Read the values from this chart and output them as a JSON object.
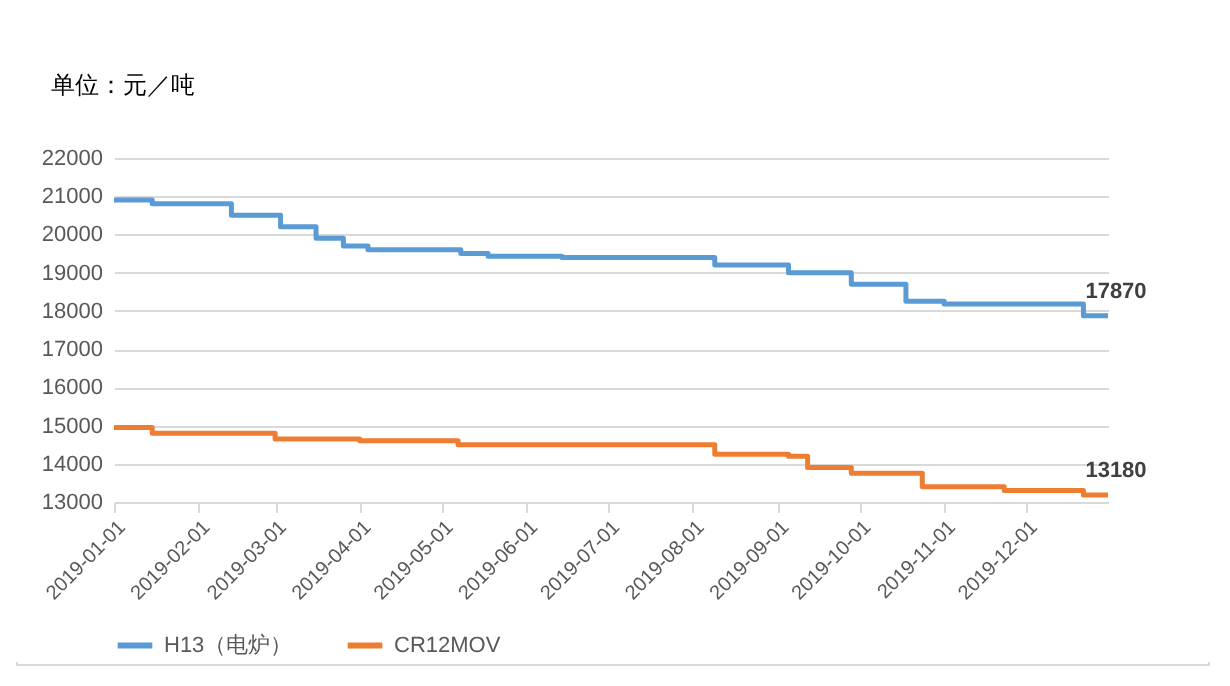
{
  "chart_data": {
    "type": "step",
    "ylabel": "单位：元／吨",
    "xlim": [
      "2019-01-01",
      "2019-12-31"
    ],
    "xticks": [
      "2019-01-01",
      "2019-02-01",
      "2019-03-01",
      "2019-04-01",
      "2019-05-01",
      "2019-06-01",
      "2019-07-01",
      "2019-08-01",
      "2019-09-01",
      "2019-10-01",
      "2019-11-01",
      "2019-12-01"
    ],
    "ylim": [
      13000,
      22000
    ],
    "yticks": [
      13000,
      14000,
      15000,
      16000,
      17000,
      18000,
      19000,
      20000,
      21000,
      22000
    ],
    "grid": "y",
    "legend": "bottom",
    "marker": "none",
    "line_style": "solid",
    "series": [
      {
        "name": "H13（电炉）",
        "color": "#5b9bd5",
        "x": [
          "2019-01-01",
          "2019-01-15",
          "2019-02-13",
          "2019-03-03",
          "2019-03-16",
          "2019-03-26",
          "2019-04-04",
          "2019-05-08",
          "2019-05-18",
          "2019-06-14",
          "2019-08-09",
          "2019-09-05",
          "2019-09-28",
          "2019-10-18",
          "2019-11-01",
          "2019-12-22",
          "2019-12-31"
        ],
        "values": [
          20900,
          20800,
          20500,
          20200,
          19900,
          19700,
          19600,
          19500,
          19430,
          19400,
          19200,
          19000,
          18700,
          18250,
          18180,
          17870,
          17870
        ]
      },
      {
        "name": "CR12MOV",
        "color": "#ed7d31",
        "x": [
          "2019-01-01",
          "2019-01-15",
          "2019-03-01",
          "2019-04-01",
          "2019-05-07",
          "2019-08-09",
          "2019-09-05",
          "2019-09-12",
          "2019-09-28",
          "2019-10-24",
          "2019-11-23",
          "2019-12-22",
          "2019-12-31"
        ],
        "values": [
          14950,
          14800,
          14650,
          14600,
          14500,
          14250,
          14200,
          13900,
          13750,
          13400,
          13300,
          13180,
          13180
        ]
      }
    ],
    "annotations": [
      {
        "text": "17870",
        "x": "2019-12-31",
        "y": 17870
      },
      {
        "text": "13180",
        "x": "2019-12-31",
        "y": 13180
      }
    ]
  }
}
